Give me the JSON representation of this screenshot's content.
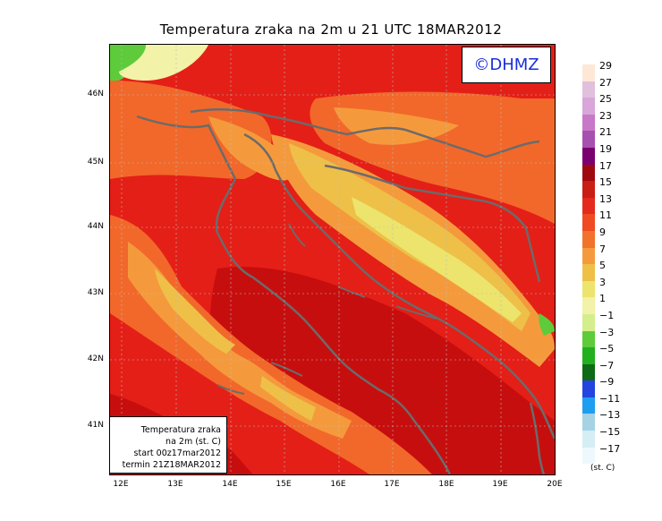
{
  "title": "Temperatura zraka na 2m u 21 UTC 18MAR2012",
  "logo": "©DHMZ",
  "info_box": {
    "line1": "Temperatura zraka",
    "line2": "na 2m (st. C)",
    "line3": "start 00z17mar2012",
    "line4": "termin 21Z18MAR2012"
  },
  "lat_labels": [
    "46N",
    "45N",
    "44N",
    "43N",
    "42N",
    "41N"
  ],
  "lon_labels": [
    "12E",
    "13E",
    "14E",
    "15E",
    "16E",
    "17E",
    "18E",
    "19E",
    "20E"
  ],
  "legend": {
    "unit": "(st. C)",
    "labels": [
      "29",
      "27",
      "25",
      "23",
      "21",
      "19",
      "17",
      "15",
      "13",
      "11",
      "9",
      "7",
      "5",
      "3",
      "1",
      "−1",
      "−3",
      "−5",
      "−7",
      "−9",
      "−11",
      "−13",
      "−15",
      "−17"
    ],
    "colors": [
      "#fde8d6",
      "#e0c0dc",
      "#d8a6d8",
      "#c878c8",
      "#a850b0",
      "#7a0070",
      "#a00810",
      "#c81e14",
      "#e42a1c",
      "#f04a22",
      "#f2722c",
      "#f59a3c",
      "#eec048",
      "#ece46c",
      "#f2f2a8",
      "#d4ee8c",
      "#5ecb3a",
      "#22b01e",
      "#0e6a14",
      "#2444e0",
      "#1e9ef0",
      "#a6d2e6",
      "#d4eef4",
      "#eef8fc"
    ]
  },
  "map_colors": {
    "sea_deep": "#c70e0e",
    "sea": "#e41f17",
    "mid": "#f2682a",
    "warm": "#f59a3c",
    "cool": "#eec048",
    "cold": "#ece46c",
    "pale": "#f2f2a8",
    "green": "#5ecb3a",
    "coast": "#6b6b6b"
  }
}
